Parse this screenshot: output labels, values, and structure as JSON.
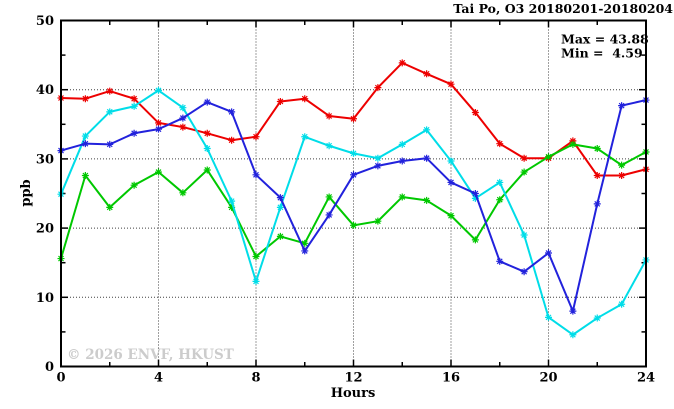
{
  "window": {
    "title": "Tai Po, O3 20180201-20180204"
  },
  "annotations": {
    "max_label": "Max = 43.88",
    "min_label": "Min =  4.59"
  },
  "watermark": "© 2026 ENVF, HKUST",
  "chart_data": {
    "type": "line",
    "title": "Tai Po, O3 20180201-20180204",
    "xlabel": "Hours",
    "ylabel": "ppb",
    "xlim": [
      0,
      24
    ],
    "ylim": [
      0,
      50
    ],
    "x_major_ticks": [
      0,
      4,
      8,
      12,
      16,
      20,
      24
    ],
    "x_tick_labels": [
      "0",
      "4",
      "8",
      "12",
      "16",
      "20",
      "24"
    ],
    "x_minor_tick_step": 2,
    "y_major_ticks": [
      0,
      10,
      20,
      30,
      40,
      50
    ],
    "y_tick_labels": [
      "0",
      "10",
      "20",
      "30",
      "40",
      "50"
    ],
    "y_minor_tick_step": 5,
    "grid": "dotted-at-major-ticks",
    "legend": "none",
    "marker": "asterisk",
    "stats": {
      "max": 43.88,
      "min": 4.59
    },
    "x_hours": [
      0,
      1,
      2,
      3,
      4,
      5,
      6,
      7,
      8,
      9,
      10,
      11,
      12,
      13,
      14,
      15,
      16,
      17,
      18,
      19,
      20,
      21,
      22,
      23,
      24
    ],
    "series": [
      {
        "name": "red",
        "color": "#ed0000",
        "values": [
          38.8,
          38.7,
          39.8,
          38.7,
          35.2,
          34.6,
          33.7,
          32.7,
          33.2,
          38.3,
          38.7,
          36.2,
          35.8,
          40.3,
          43.88,
          42.3,
          40.8,
          36.7,
          32.2,
          30.1,
          30.1,
          32.6,
          27.6,
          27.6,
          28.5
        ]
      },
      {
        "name": "green",
        "color": "#00c800",
        "values": [
          15.6,
          27.6,
          23.0,
          26.2,
          28.1,
          25.1,
          28.4,
          23.0,
          15.9,
          18.8,
          17.8,
          24.5,
          20.4,
          21.0,
          24.5,
          24.0,
          21.8,
          18.3,
          24.1,
          28.1,
          30.3,
          32.1,
          31.5,
          29.1,
          31.0
        ]
      },
      {
        "name": "cyan",
        "color": "#00dde8",
        "values": [
          24.9,
          33.3,
          36.8,
          37.6,
          39.9,
          37.4,
          31.5,
          23.9,
          12.3,
          23.0,
          33.2,
          31.9,
          30.8,
          30.1,
          32.1,
          34.2,
          29.7,
          24.3,
          26.6,
          19.0,
          7.1,
          4.59,
          7.0,
          9.0,
          15.4
        ]
      },
      {
        "name": "blue",
        "color": "#2222dc",
        "values": [
          31.2,
          32.2,
          32.1,
          33.7,
          34.3,
          35.9,
          38.2,
          36.8,
          27.7,
          24.4,
          16.7,
          21.9,
          27.7,
          29.0,
          29.7,
          30.1,
          26.6,
          25.0,
          15.2,
          13.7,
          16.4,
          8.0,
          23.5,
          37.7,
          38.5
        ]
      }
    ]
  }
}
